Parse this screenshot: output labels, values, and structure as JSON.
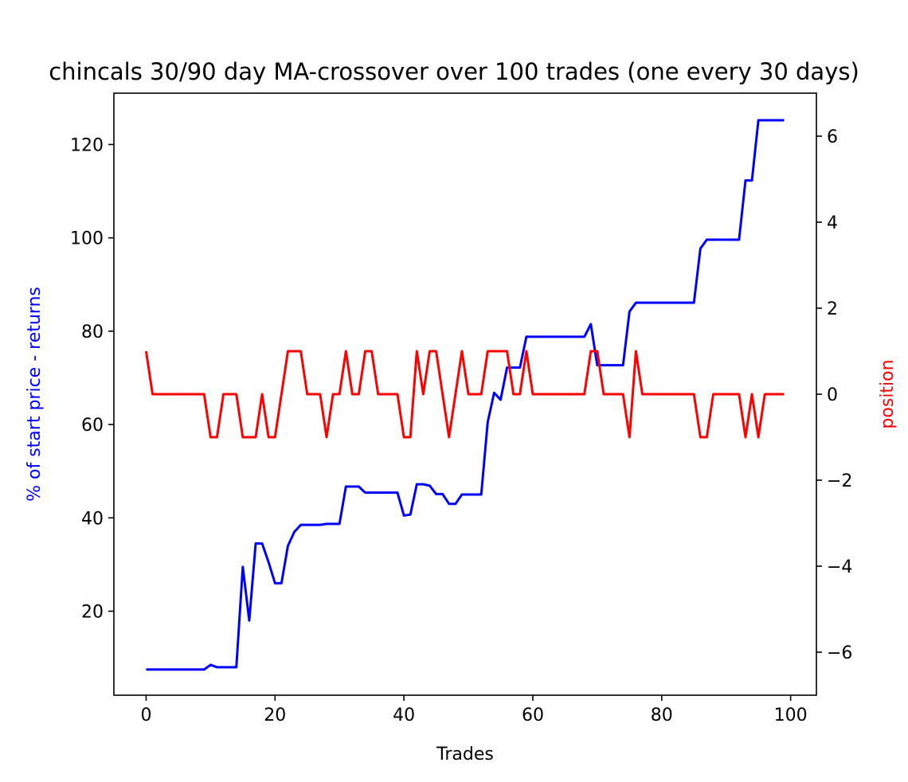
{
  "chart_data": {
    "type": "line",
    "title": "chincals 30/90 day MA-crossover over 100 trades (one every 30 days)",
    "xlabel": "Trades",
    "ylabel_left": "% of start price - returns",
    "ylabel_right": "position",
    "xlim": [
      -5,
      104
    ],
    "ylim_left": [
      2,
      131
    ],
    "ylim_right": [
      -7,
      7
    ],
    "x_ticks": [
      0,
      20,
      40,
      60,
      80,
      100
    ],
    "y_left_ticks": [
      20,
      40,
      60,
      80,
      100,
      120
    ],
    "y_right_ticks": [
      -6,
      -4,
      -2,
      0,
      2,
      4,
      6
    ],
    "grid": false,
    "colors": {
      "returns": "#0000ff",
      "position": "#ff0000",
      "axis": "#000000"
    },
    "series": [
      {
        "axis": "left",
        "color": "#0000ff",
        "x": [
          0,
          1,
          2,
          3,
          4,
          5,
          6,
          7,
          8,
          9,
          10,
          11,
          12,
          13,
          14,
          15,
          16,
          17,
          18,
          19,
          20,
          21,
          22,
          23,
          24,
          25,
          26,
          27,
          28,
          29,
          30,
          31,
          32,
          33,
          34,
          35,
          36,
          37,
          38,
          39,
          40,
          41,
          42,
          43,
          44,
          45,
          46,
          47,
          48,
          49,
          50,
          51,
          52,
          53,
          54,
          55,
          56,
          57,
          58,
          59,
          60,
          61,
          62,
          63,
          64,
          65,
          66,
          67,
          68,
          69,
          70,
          71,
          72,
          73,
          74,
          75,
          76,
          77,
          78,
          79,
          80,
          81,
          82,
          83,
          84,
          85,
          86,
          87,
          88,
          89,
          90,
          91,
          92,
          93,
          94,
          95,
          96,
          97,
          98,
          99
        ],
        "values": [
          7.5,
          7.5,
          7.5,
          7.5,
          7.5,
          7.5,
          7.5,
          7.5,
          7.5,
          7.5,
          8.5,
          8,
          8,
          8,
          8,
          29.5,
          18,
          34.5,
          34.5,
          30.5,
          26,
          26,
          34,
          37,
          38.5,
          38.5,
          38.5,
          38.5,
          38.7,
          38.7,
          38.7,
          46.7,
          46.7,
          46.7,
          45.4,
          45.4,
          45.4,
          45.4,
          45.4,
          45.4,
          40.5,
          40.7,
          47.2,
          47.2,
          46.9,
          45.1,
          45.1,
          43,
          43,
          45,
          45,
          45,
          45,
          60.5,
          66.8,
          65.3,
          72.2,
          72.2,
          72.2,
          78.8,
          78.8,
          78.8,
          78.8,
          78.8,
          78.8,
          78.8,
          78.8,
          78.8,
          78.8,
          81.5,
          72.7,
          72.7,
          72.7,
          72.7,
          72.7,
          84.2,
          86.1,
          86.1,
          86.1,
          86.1,
          86.1,
          86.1,
          86.1,
          86.1,
          86.1,
          86.1,
          97.7,
          99.6,
          99.6,
          99.6,
          99.6,
          99.6,
          99.6,
          112.3,
          112.3,
          125.2,
          125.2,
          125.2,
          125.2,
          125.2
        ]
      },
      {
        "axis": "right",
        "color": "#ff0000",
        "x": [
          0,
          1,
          2,
          3,
          4,
          5,
          6,
          7,
          8,
          9,
          10,
          11,
          12,
          13,
          14,
          15,
          16,
          17,
          18,
          19,
          20,
          21,
          22,
          23,
          24,
          25,
          26,
          27,
          28,
          29,
          30,
          31,
          32,
          33,
          34,
          35,
          36,
          37,
          38,
          39,
          40,
          41,
          42,
          43,
          44,
          45,
          46,
          47,
          48,
          49,
          50,
          51,
          52,
          53,
          54,
          55,
          56,
          57,
          58,
          59,
          60,
          61,
          62,
          63,
          64,
          65,
          66,
          67,
          68,
          69,
          70,
          71,
          72,
          73,
          74,
          75,
          76,
          77,
          78,
          79,
          80,
          81,
          82,
          83,
          84,
          85,
          86,
          87,
          88,
          89,
          90,
          91,
          92,
          93,
          94,
          95,
          96,
          97,
          98,
          99
        ],
        "values": [
          1,
          0,
          0,
          0,
          0,
          0,
          0,
          0,
          0,
          0,
          -1,
          -1,
          0,
          0,
          0,
          -1,
          -1,
          -1,
          0,
          -1,
          -1,
          0,
          1,
          1,
          1,
          0,
          0,
          0,
          -1,
          0,
          0,
          1,
          0,
          0,
          1,
          1,
          0,
          0,
          0,
          0,
          -1,
          -1,
          1,
          0,
          1,
          1,
          0,
          -1,
          0,
          1,
          0,
          0,
          0,
          1,
          1,
          1,
          1,
          0,
          0,
          1,
          0,
          0,
          0,
          0,
          0,
          0,
          0,
          0,
          0,
          1,
          1,
          0,
          0,
          0,
          0,
          -1,
          1,
          0,
          0,
          0,
          0,
          0,
          0,
          0,
          0,
          0,
          -1,
          -1,
          0,
          0,
          0,
          0,
          0,
          -1,
          0,
          -1,
          0,
          0,
          0,
          0
        ]
      }
    ]
  }
}
